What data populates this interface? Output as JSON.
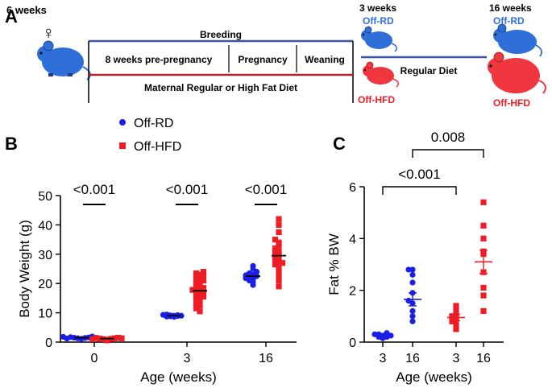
{
  "colors": {
    "rd": "#1a1fe6",
    "hfd": "#ee1c24",
    "rd_mouse": "#2f6fd8",
    "hfd_mouse": "#f0363f",
    "bar_blue": "#3b55a0",
    "bar_red": "#b0262e"
  },
  "panel_a": {
    "letter": "A",
    "start_age": "6 weeks",
    "female_symbol": "♀",
    "timeline_title": "Breeding",
    "stages": [
      "8 weeks pre-pregnancy",
      "Pregnancy",
      "Weaning"
    ],
    "maternal_diet": "Maternal Regular or High Fat  Diet",
    "age_3": "3 weeks",
    "age_16": "16 weeks",
    "rd_label": "Off-RD",
    "hfd_label": "Off-HFD",
    "regular_diet": "Regular Diet"
  },
  "legend": {
    "rd": "Off-RD",
    "hfd": "Off-HFD"
  },
  "chart_data": [
    {
      "panel": "B",
      "type": "scatter",
      "xlabel": "Age (weeks)",
      "ylabel": "Body  Weight (g)",
      "ylim": [
        0,
        50
      ],
      "yticks": [
        0,
        10,
        20,
        30,
        40,
        50
      ],
      "categories": [
        "0",
        "3",
        "16"
      ],
      "p_values": [
        "<0.001",
        "<0.001",
        "<0.001"
      ],
      "series": [
        {
          "name": "Off-RD",
          "marker": "circle",
          "groups": [
            {
              "x": "0",
              "mean": 1.5,
              "values": [
                1.1,
                1.3,
                1.4,
                1.5,
                1.6,
                1.7,
                1.9,
                1.2,
                1.5,
                1.8
              ]
            },
            {
              "x": "3",
              "mean": 9.0,
              "values": [
                8.6,
                8.8,
                8.9,
                9.0,
                9.1,
                9.2,
                9.4,
                8.7,
                9.0,
                9.3
              ]
            },
            {
              "x": "16",
              "mean": 22.5,
              "values": [
                19.5,
                20.5,
                21.0,
                21.5,
                22.0,
                22.5,
                23.0,
                23.5,
                24.0,
                25.0,
                26.0,
                21.8,
                22.8
              ]
            }
          ]
        },
        {
          "name": "Off-HFD",
          "marker": "square",
          "groups": [
            {
              "x": "0",
              "mean": 1.2,
              "values": [
                0.6,
                0.8,
                1.0,
                1.1,
                1.2,
                1.3,
                1.4,
                1.5,
                1.0,
                1.3
              ]
            },
            {
              "x": "3",
              "mean": 17.5,
              "values": [
                10.5,
                11.5,
                12.5,
                13.5,
                14.5,
                15.0,
                15.5,
                16.0,
                16.5,
                17.0,
                17.5,
                18.0,
                18.5,
                19.0,
                19.5,
                20.0,
                20.5,
                21.0,
                21.5,
                22.0,
                22.5,
                23.0,
                23.5,
                24.0,
                13.0,
                17.8
              ]
            },
            {
              "x": "16",
              "mean": 29.5,
              "values": [
                19.0,
                21.0,
                22.5,
                24.0,
                25.5,
                26.5,
                27.5,
                28.0,
                29.0,
                29.5,
                30.0,
                31.0,
                32.0,
                33.0,
                34.0,
                35.0,
                37.5,
                40.0,
                42.0,
                27.0,
                30.5
              ]
            }
          ]
        }
      ]
    },
    {
      "panel": "C",
      "type": "scatter",
      "xlabel": "Age (weeks)",
      "ylabel": "Fat % BW",
      "ylim": [
        0,
        6
      ],
      "yticks": [
        0,
        2,
        4,
        6
      ],
      "categories": [
        "3",
        "16",
        "3",
        "16"
      ],
      "p_values": [
        {
          "label": "<0.001",
          "from": 0,
          "to": 2
        },
        {
          "label": "0.008",
          "from": 1,
          "to": 3
        }
      ],
      "series": [
        {
          "name": "Off-RD",
          "marker": "circle",
          "groups": [
            {
              "x": "3",
              "mean": 0.25,
              "sem": 0.05,
              "values": [
                0.15,
                0.2,
                0.25,
                0.3,
                0.35,
                0.2,
                0.3,
                0.25
              ]
            },
            {
              "x": "16",
              "mean": 1.65,
              "sem": 0.25,
              "values": [
                0.8,
                1.0,
                1.2,
                1.5,
                1.6,
                1.9,
                2.3,
                2.6,
                2.8,
                2.8
              ]
            }
          ]
        },
        {
          "name": "Off-HFD",
          "marker": "square",
          "groups": [
            {
              "x": "3",
              "mean": 0.95,
              "sem": 0.12,
              "values": [
                0.5,
                0.7,
                0.8,
                0.95,
                1.0,
                1.05,
                1.2,
                1.4
              ]
            },
            {
              "x": "16",
              "mean": 3.1,
              "sem": 0.45,
              "values": [
                1.2,
                1.8,
                2.1,
                2.7,
                3.4,
                3.5,
                4.0,
                4.5,
                5.4
              ]
            }
          ]
        }
      ]
    }
  ]
}
